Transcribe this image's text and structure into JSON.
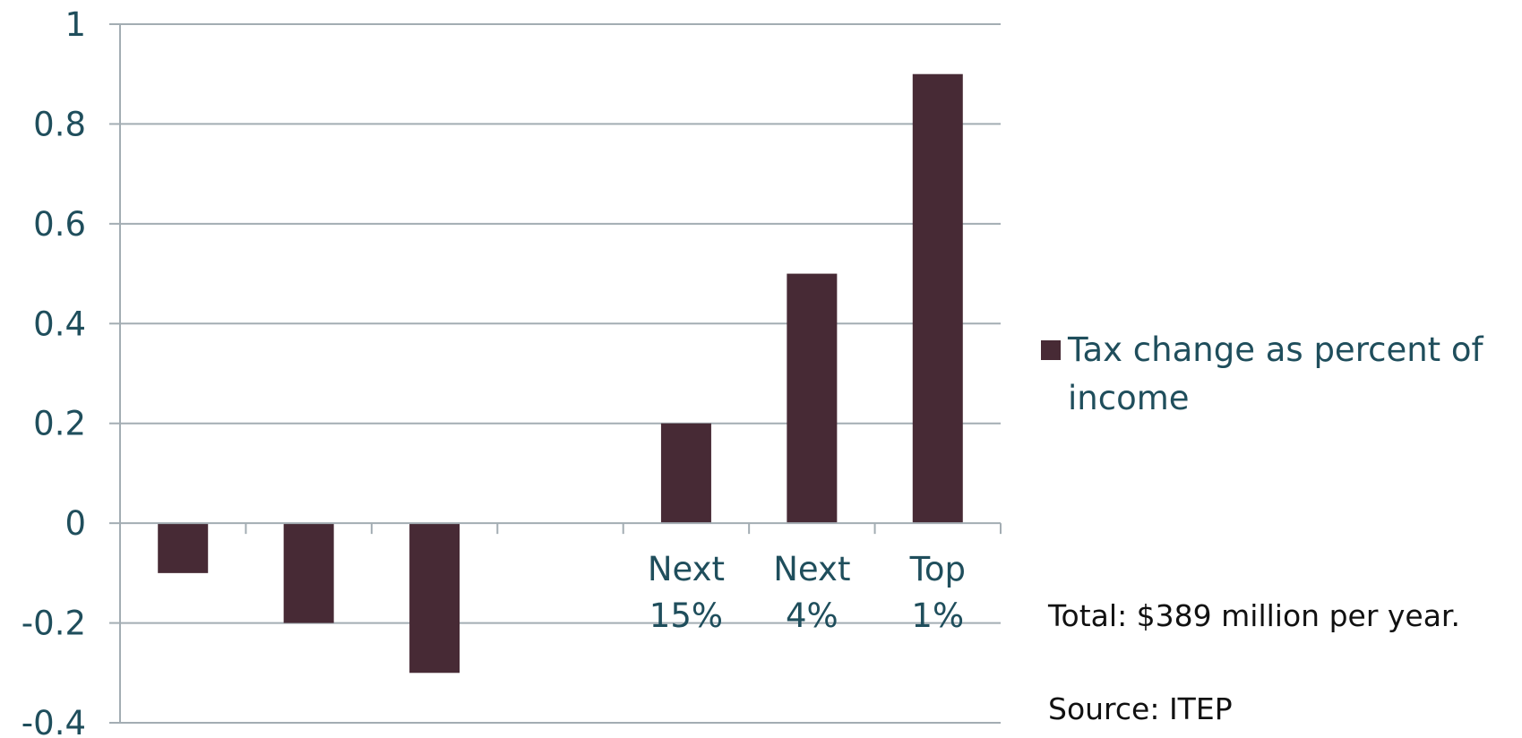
{
  "chart_data": {
    "type": "bar",
    "categories": [
      "",
      "",
      "",
      "",
      "Next 15%",
      "Next 4%",
      "Top 1%"
    ],
    "category_lines": [
      [],
      [],
      [],
      [],
      [
        "Next",
        "15%"
      ],
      [
        "Next",
        "4%"
      ],
      [
        "Top",
        "1%"
      ]
    ],
    "series": [
      {
        "name": "Tax change as percent of income",
        "values": [
          -0.1,
          -0.2,
          -0.3,
          0,
          0.2,
          0.5,
          0.9
        ],
        "color": "#472a35"
      }
    ],
    "ylim": [
      -0.4,
      1
    ],
    "yticks": [
      "-0.4",
      "-0.2",
      "0",
      "0.2",
      "0.4",
      "0.6",
      "0.8",
      "1"
    ],
    "ytick_values": [
      -0.4,
      -0.2,
      0,
      0.2,
      0.4,
      0.6,
      0.8,
      1
    ],
    "grid": true,
    "legend_position": "right",
    "axis_text_color": "#1f4e5c",
    "grid_color": "#a3adb3"
  },
  "legend": {
    "label": "Tax change as percent of income",
    "color": "#472a35"
  },
  "notes": {
    "total": "Total: $389 million per year.",
    "source": "Source: ITEP"
  }
}
